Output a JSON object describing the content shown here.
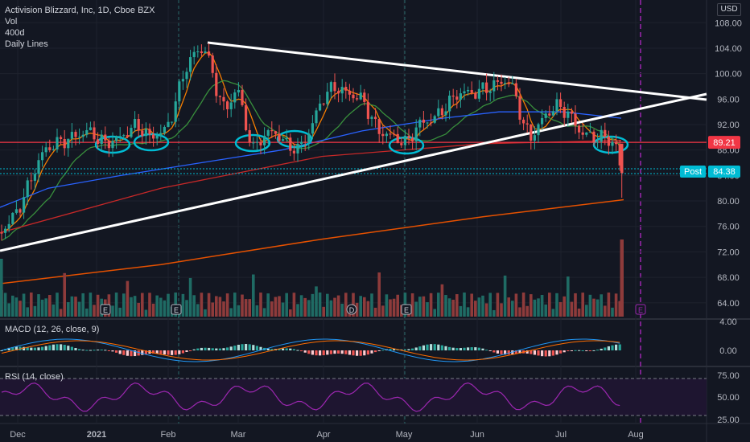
{
  "header": {
    "symbol_line": "Activision Blizzard, Inc, 1D, Cboe BZX",
    "vol_label": "Vol",
    "ma_label": "400d",
    "lines_label": "Daily Lines",
    "currency": "USD"
  },
  "price_axis": {
    "ticks": [
      "108.00",
      "104.00",
      "100.00",
      "96.00",
      "92.00",
      "88.00",
      "84.00",
      "80.00",
      "76.00",
      "72.00",
      "68.00",
      "64.00"
    ],
    "tick_values": [
      108,
      104,
      100,
      96,
      92,
      88,
      84,
      80,
      76,
      72,
      68,
      64
    ]
  },
  "price_badges": {
    "support": {
      "value": 89.21,
      "label": "89.21",
      "color": "#f23645"
    },
    "post_label": "Post",
    "post_value_label": "84.38",
    "post_value": 84.38,
    "post_color": "#00bcd4"
  },
  "macd": {
    "label": "MACD (12, 26, close, 9)",
    "ticks": [
      "4.00",
      "0.00"
    ]
  },
  "rsi": {
    "label": "RSI (14, close)",
    "ticks": [
      "75.00",
      "50.00",
      "25.00"
    ]
  },
  "time_axis": {
    "labels": [
      "Dec",
      "2021",
      "Feb",
      "Mar",
      "Apr",
      "May",
      "Jun",
      "Jul",
      "Aug"
    ]
  },
  "event_markers": [
    "E",
    "E",
    "D",
    "E",
    "E"
  ],
  "colors": {
    "up": "#26a69a",
    "down": "#ef5350",
    "background": "#131722",
    "ma_orange": "#f57c00",
    "ma_green": "#388e3c",
    "ma_blue": "#2962ff",
    "ma_red": "#c62828",
    "rsi_line": "#9c27b0",
    "annotation": "#00bcd4"
  },
  "chart_data": {
    "type": "candlestick",
    "title": "Activision Blizzard, Inc, 1D, Cboe BZX",
    "ylim": [
      62,
      110
    ],
    "support_level": 89.21,
    "last_post_price": 84.38,
    "pattern": "symmetrical triangle",
    "approx_closes": [
      {
        "x": "Dec",
        "close": 78
      },
      {
        "x": "2021",
        "close": 90
      },
      {
        "x": "Feb",
        "close": 94
      },
      {
        "x": "Feb (peak)",
        "close": 104
      },
      {
        "x": "Mar",
        "close": 90
      },
      {
        "x": "Apr",
        "close": 98
      },
      {
        "x": "May",
        "close": 92
      },
      {
        "x": "Jun",
        "close": 98
      },
      {
        "x": "Jul",
        "close": 93
      },
      {
        "x": "late Jul",
        "close": 90
      },
      {
        "x": "post",
        "close": 84.38
      }
    ],
    "grid": true
  }
}
